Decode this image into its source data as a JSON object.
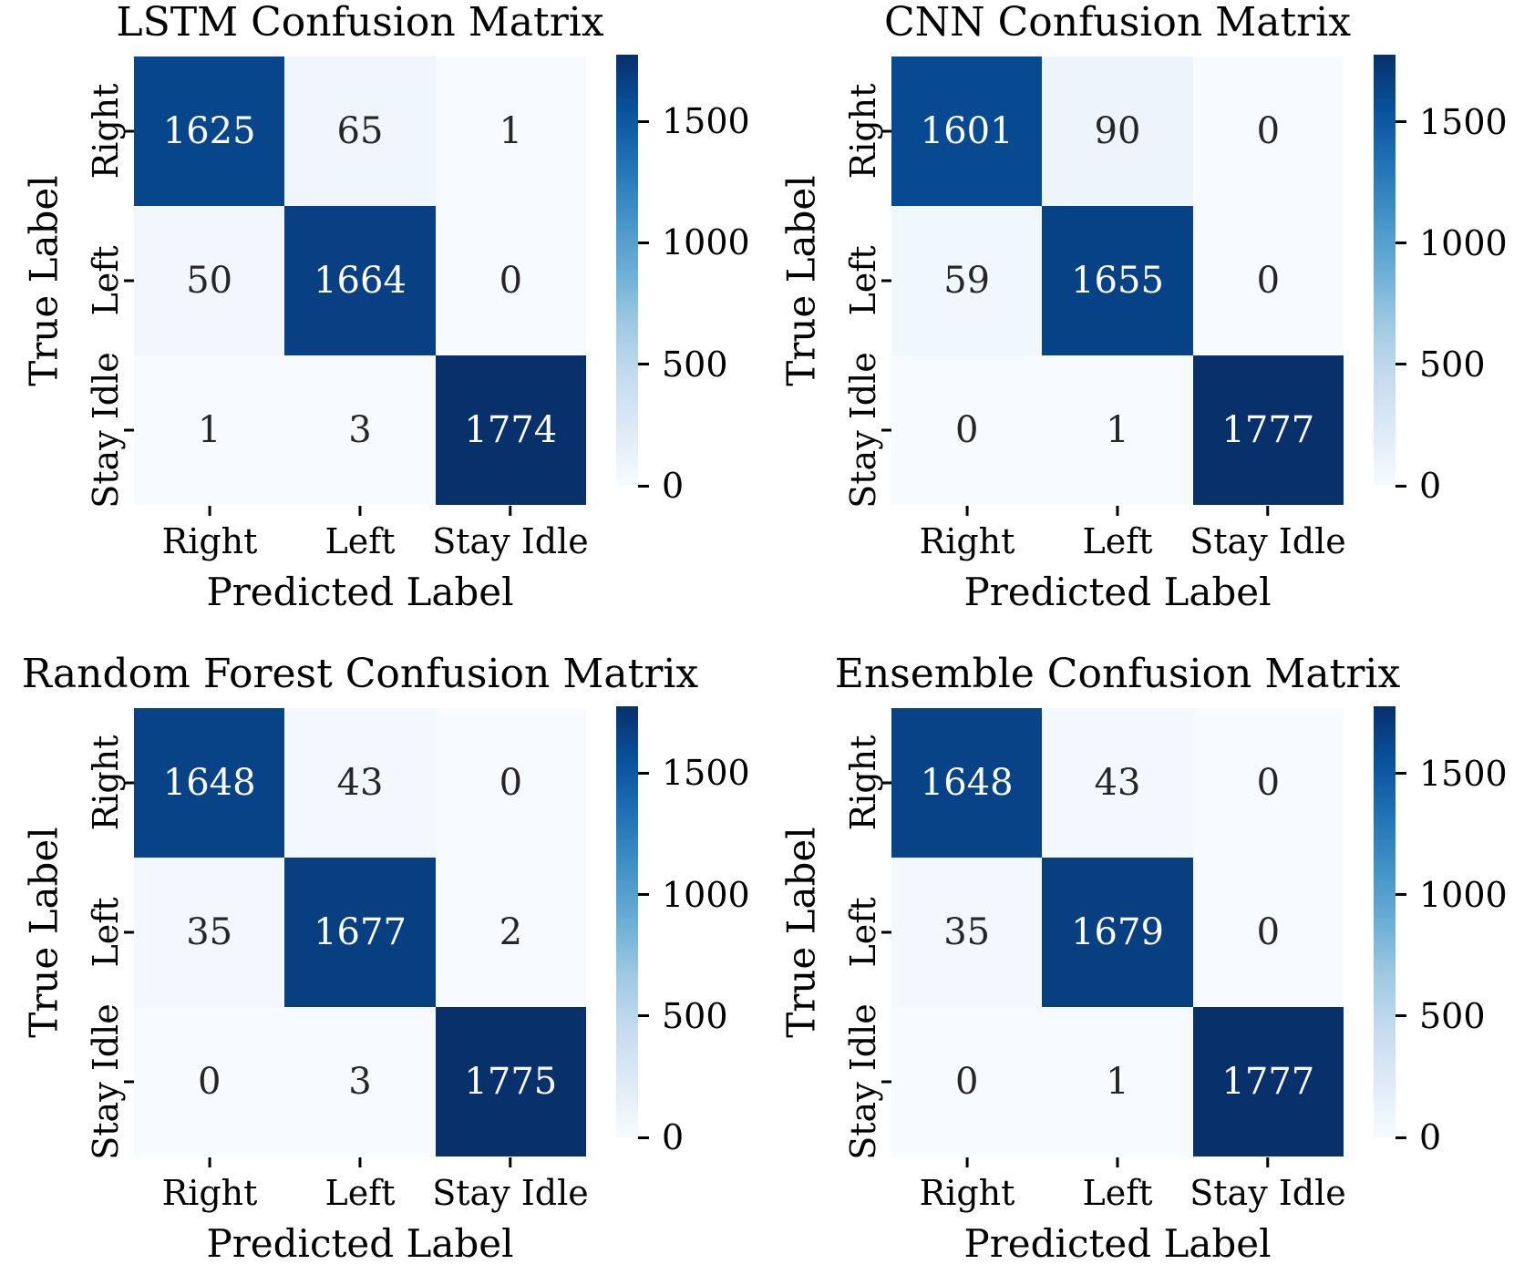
{
  "figure": {
    "background_color": "#ffffff",
    "text_color": "#000000",
    "annot_dark_text_color": "#262626",
    "annot_light_text_color": "#ffffff",
    "colormap": "Blues",
    "colormap_stops": [
      "#f7fbff",
      "#deebf7",
      "#c6dbef",
      "#9ecae1",
      "#6baed6",
      "#4292c6",
      "#2171b5",
      "#08519c",
      "#08306b"
    ]
  },
  "chart_data": [
    {
      "type": "heatmap",
      "title": "LSTM Confusion Matrix",
      "xlabel": "Predicted Label",
      "ylabel": "True Label",
      "categories": [
        "Right",
        "Left",
        "Stay Idle"
      ],
      "rows": [
        [
          1625,
          65,
          1
        ],
        [
          50,
          1664,
          0
        ],
        [
          1,
          3,
          1774
        ]
      ],
      "vmin": 0,
      "vmax": 1774,
      "colorbar_ticks": [
        1500,
        1000,
        500,
        0
      ],
      "colorbar_position": "right",
      "grid": false
    },
    {
      "type": "heatmap",
      "title": "CNN Confusion Matrix",
      "xlabel": "Predicted Label",
      "ylabel": "True Label",
      "categories": [
        "Right",
        "Left",
        "Stay Idle"
      ],
      "rows": [
        [
          1601,
          90,
          0
        ],
        [
          59,
          1655,
          0
        ],
        [
          0,
          1,
          1777
        ]
      ],
      "vmin": 0,
      "vmax": 1777,
      "colorbar_ticks": [
        1500,
        1000,
        500,
        0
      ],
      "colorbar_position": "right",
      "grid": false
    },
    {
      "type": "heatmap",
      "title": "Random Forest Confusion Matrix",
      "xlabel": "Predicted Label",
      "ylabel": "True Label",
      "categories": [
        "Right",
        "Left",
        "Stay Idle"
      ],
      "rows": [
        [
          1648,
          43,
          0
        ],
        [
          35,
          1677,
          2
        ],
        [
          0,
          3,
          1775
        ]
      ],
      "vmin": 0,
      "vmax": 1775,
      "colorbar_ticks": [
        1500,
        1000,
        500,
        0
      ],
      "colorbar_position": "right",
      "grid": false
    },
    {
      "type": "heatmap",
      "title": "Ensemble Confusion Matrix",
      "xlabel": "Predicted Label",
      "ylabel": "True Label",
      "categories": [
        "Right",
        "Left",
        "Stay Idle"
      ],
      "rows": [
        [
          1648,
          43,
          0
        ],
        [
          35,
          1679,
          0
        ],
        [
          0,
          1,
          1777
        ]
      ],
      "vmin": 0,
      "vmax": 1777,
      "colorbar_ticks": [
        1500,
        1000,
        500,
        0
      ],
      "colorbar_position": "right",
      "grid": false
    }
  ]
}
